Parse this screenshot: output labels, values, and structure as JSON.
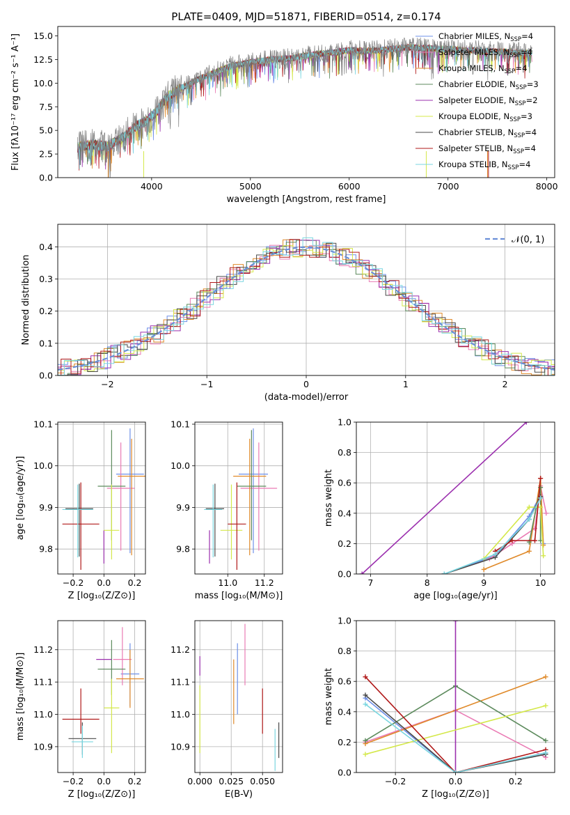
{
  "figure": {
    "title": "PLATE=0409, MJD=51871, FIBERID=0514, z=0.174"
  },
  "models": [
    {
      "name": "Chabrier MILES",
      "nssp": "4",
      "color": "#6d8fe8"
    },
    {
      "name": "Salpeter MILES",
      "nssp": "4",
      "color": "#ea7bb4"
    },
    {
      "name": "Kroupa MILES",
      "nssp": "4",
      "color": "#e08a2a"
    },
    {
      "name": "Chabrier ELODIE",
      "nssp": "3",
      "color": "#5c8a5c"
    },
    {
      "name": "Salpeter ELODIE",
      "nssp": "2",
      "color": "#9b2fae"
    },
    {
      "name": "Kroupa ELODIE",
      "nssp": "3",
      "color": "#d4e84a"
    },
    {
      "name": "Chabrier STELIB",
      "nssp": "4",
      "color": "#4a4a4a"
    },
    {
      "name": "Salpeter STELIB",
      "nssp": "4",
      "color": "#b01818"
    },
    {
      "name": "Kroupa STELIB",
      "nssp": "4",
      "color": "#79d6e0"
    }
  ],
  "chart_data": [
    {
      "id": "spectrum",
      "type": "line",
      "xlabel": "wavelength [Angstrom, rest frame]",
      "ylabel": "Flux [fλ10⁻¹⁷ erg cm⁻² s⁻¹ A⁻¹]",
      "xlim": [
        3050,
        8080
      ],
      "ylim": [
        0,
        16
      ],
      "xticks": [
        4000,
        5000,
        6000,
        7000,
        8000
      ],
      "yticks": [
        0.0,
        2.5,
        5.0,
        7.5,
        10.0,
        12.5,
        15.0
      ],
      "data_color": "#808080",
      "x": [
        3250,
        3400,
        3550,
        3700,
        3850,
        3950,
        4050,
        4150,
        4300,
        4450,
        4600,
        4800,
        5000,
        5200,
        5400,
        5600,
        5800,
        6000,
        6200,
        6400,
        6600,
        6800,
        7000,
        7200,
        7400,
        7600,
        7800
      ],
      "y": [
        3.2,
        3.5,
        3.3,
        4.2,
        5.5,
        6.0,
        7.0,
        8.5,
        9.5,
        10.3,
        11.0,
        11.8,
        12.2,
        12.5,
        12.6,
        13.0,
        13.2,
        13.5,
        13.4,
        13.6,
        13.8,
        13.7,
        13.6,
        13.5,
        13.4,
        13.3,
        13.2
      ],
      "grid": false,
      "legend": "top-right"
    },
    {
      "id": "residuals",
      "type": "histogram",
      "xlabel": "(data-model)/error",
      "ylabel": "Normed distribution",
      "xlim": [
        -2.5,
        2.5
      ],
      "ylim": [
        0,
        0.47
      ],
      "xticks": [
        -2,
        -1,
        0,
        1,
        2
      ],
      "yticks": [
        0.0,
        0.1,
        0.2,
        0.3,
        0.4
      ],
      "bin_width": 0.1,
      "gaussian_label": "𝒩(0, 1)",
      "gaussian_color": "#6a8fd8",
      "grid": true,
      "legend": "top-right"
    },
    {
      "id": "age-vs-z",
      "type": "scatter",
      "xlabel": "Z [log₁₀(Z/Z⊙)]",
      "ylabel": "age  [log₁₀(age/yr)]",
      "xlim": [
        -0.3,
        0.27
      ],
      "ylim": [
        9.74,
        10.105
      ],
      "xticks": [
        -0.2,
        0.0,
        0.2
      ],
      "xticklabels": [
        "−0.2",
        "0.0",
        "0.2"
      ],
      "yticks": [
        9.8,
        9.9,
        10.0,
        10.1
      ],
      "yticklabels": [
        "9.8",
        "9.9",
        "10.0",
        "10.1"
      ],
      "points": [
        {
          "x": 0.17,
          "xerr": 0.09,
          "y": 9.98,
          "yerr_lo": 0.19,
          "yerr_hi": 0.11
        },
        {
          "x": 0.11,
          "xerr": 0.09,
          "y": 9.946,
          "yerr_lo": 0.15,
          "yerr_hi": 0.11
        },
        {
          "x": 0.18,
          "xerr": 0.09,
          "y": 9.975,
          "yerr_lo": 0.19,
          "yerr_hi": 0.09
        },
        {
          "x": 0.05,
          "xerr": 0.09,
          "y": 9.951,
          "yerr_lo": 0.13,
          "yerr_hi": 0.135
        },
        {
          "x": 0.0,
          "xerr": 0.0,
          "y": 9.845,
          "yerr_lo": 0.08,
          "yerr_hi": 0.0
        },
        {
          "x": 0.05,
          "xerr": 0.05,
          "y": 9.845,
          "yerr_lo": 0.07,
          "yerr_hi": 0.11
        },
        {
          "x": -0.16,
          "xerr": 0.09,
          "y": 9.897,
          "yerr_lo": 0.115,
          "yerr_hi": 0.06
        },
        {
          "x": -0.15,
          "xerr": 0.12,
          "y": 9.86,
          "yerr_lo": 0.11,
          "yerr_hi": 0.1
        },
        {
          "x": -0.17,
          "xerr": 0.1,
          "y": 9.895,
          "yerr_lo": 0.115,
          "yerr_hi": 0.06
        }
      ]
    },
    {
      "id": "age-vs-mass",
      "type": "scatter",
      "xlabel": "mass [log₁₀(M/M⊙)]",
      "ylabel": "",
      "xlim": [
        10.82,
        11.3
      ],
      "ylim": [
        9.74,
        10.105
      ],
      "xticks": [
        11.0,
        11.2
      ],
      "xticklabels": [
        "11.0",
        "11.2"
      ],
      "yticks": [
        9.8,
        9.9,
        10.0,
        10.1
      ],
      "yticklabels": [
        "9.8",
        "9.9",
        "10.0",
        "10.1"
      ],
      "points": [
        {
          "x": 11.14,
          "xerr": 0.08,
          "y": 9.98,
          "yerr_lo": 0.19,
          "yerr_hi": 0.11
        },
        {
          "x": 11.17,
          "xerr": 0.1,
          "y": 9.946,
          "yerr_lo": 0.15,
          "yerr_hi": 0.11
        },
        {
          "x": 11.12,
          "xerr": 0.09,
          "y": 9.975,
          "yerr_lo": 0.19,
          "yerr_hi": 0.09
        },
        {
          "x": 11.13,
          "xerr": 0.08,
          "y": 9.951,
          "yerr_lo": 0.13,
          "yerr_hi": 0.135
        },
        {
          "x": 10.9,
          "xerr": 0.0,
          "y": 9.845,
          "yerr_lo": 0.08,
          "yerr_hi": 0.0
        },
        {
          "x": 11.02,
          "xerr": 0.06,
          "y": 9.845,
          "yerr_lo": 0.07,
          "yerr_hi": 0.11
        },
        {
          "x": 10.93,
          "xerr": 0.05,
          "y": 9.897,
          "yerr_lo": 0.115,
          "yerr_hi": 0.06
        },
        {
          "x": 11.05,
          "xerr": 0.05,
          "y": 9.86,
          "yerr_lo": 0.11,
          "yerr_hi": 0.1
        },
        {
          "x": 10.92,
          "xerr": 0.05,
          "y": 9.895,
          "yerr_lo": 0.115,
          "yerr_hi": 0.06
        }
      ]
    },
    {
      "id": "weight-vs-age",
      "type": "line",
      "xlabel": "age  [log₁₀(age/yr)]",
      "ylabel": "mass weight",
      "xlim": [
        6.75,
        10.25
      ],
      "ylim": [
        0,
        1
      ],
      "xticks": [
        7,
        8,
        9,
        10
      ],
      "xticklabels": [
        "7",
        "8",
        "9",
        "10"
      ],
      "yticks": [
        0.0,
        0.2,
        0.4,
        0.6,
        0.8,
        1.0
      ],
      "series": [
        {
          "x": [
            8.3,
            9.2,
            9.8,
            10.0,
            10.05
          ],
          "y": [
            0.0,
            0.12,
            0.38,
            0.52,
            0.2
          ]
        },
        {
          "x": [
            9.1,
            9.5,
            9.9,
            10.0,
            10.1
          ],
          "y": [
            0.1,
            0.2,
            0.3,
            0.58,
            0.4
          ]
        },
        {
          "x": [
            9.0,
            9.8,
            10.0,
            10.05
          ],
          "y": [
            0.03,
            0.15,
            0.63,
            0.19
          ]
        },
        {
          "x": [
            9.8,
            10.0,
            10.0
          ],
          "y": [
            0.21,
            0.57,
            0.22
          ]
        },
        {
          "x": [
            6.85,
            9.75
          ],
          "y": [
            0.0,
            1.0
          ]
        },
        {
          "x": [
            9.0,
            9.8,
            10.0,
            10.05
          ],
          "y": [
            0.1,
            0.44,
            0.44,
            0.12
          ]
        },
        {
          "x": [
            8.3,
            9.2,
            9.8,
            10.0
          ],
          "y": [
            0.0,
            0.11,
            0.36,
            0.51
          ]
        },
        {
          "x": [
            9.2,
            9.5,
            9.9,
            10.0
          ],
          "y": [
            0.15,
            0.22,
            0.22,
            0.63
          ]
        },
        {
          "x": [
            8.3,
            9.2,
            9.8,
            10.0
          ],
          "y": [
            0.0,
            0.13,
            0.36,
            0.5
          ]
        }
      ]
    },
    {
      "id": "mass-vs-z",
      "type": "scatter",
      "xlabel": "Z [log₁₀(Z/Z⊙)]",
      "ylabel": "mass [log₁₀(M/M⊙)]",
      "xlim": [
        -0.3,
        0.27
      ],
      "ylim": [
        10.82,
        11.29
      ],
      "xticks": [
        -0.2,
        0.0,
        0.2
      ],
      "xticklabels": [
        "−0.2",
        "0.0",
        "0.2"
      ],
      "yticks": [
        10.9,
        11.0,
        11.1,
        11.2
      ],
      "yticklabels": [
        "10.9",
        "11.0",
        "11.1",
        "11.2"
      ],
      "points": [
        {
          "x": 0.17,
          "xerr": 0.06,
          "y": 11.125,
          "yerr_lo": 0.1,
          "yerr_hi": 0.095
        },
        {
          "x": 0.12,
          "xerr": 0.06,
          "y": 11.17,
          "yerr_lo": 0.08,
          "yerr_hi": 0.1
        },
        {
          "x": 0.17,
          "xerr": 0.09,
          "y": 11.11,
          "yerr_lo": 0.09,
          "yerr_hi": 0.09
        },
        {
          "x": 0.05,
          "xerr": 0.09,
          "y": 11.14,
          "yerr_lo": 0.08,
          "yerr_hi": 0.09
        },
        {
          "x": 0.0,
          "xerr": 0.05,
          "y": 11.17,
          "yerr_lo": 0.0,
          "yerr_hi": 0.0
        },
        {
          "x": 0.05,
          "xerr": 0.05,
          "y": 11.02,
          "yerr_lo": 0.14,
          "yerr_hi": 0.09
        },
        {
          "x": -0.14,
          "xerr": 0.09,
          "y": 10.925,
          "yerr_lo": 0.05,
          "yerr_hi": 0.05
        },
        {
          "x": -0.15,
          "xerr": 0.12,
          "y": 10.985,
          "yerr_lo": 0.045,
          "yerr_hi": 0.095
        },
        {
          "x": -0.14,
          "xerr": 0.07,
          "y": 10.915,
          "yerr_lo": 0.05,
          "yerr_hi": 0.05
        }
      ]
    },
    {
      "id": "mass-vs-ebv",
      "type": "scatter",
      "xlabel": "E(B-V)",
      "ylabel": "",
      "xlim": [
        -0.004,
        0.066
      ],
      "ylim": [
        10.82,
        11.29
      ],
      "xticks": [
        0.0,
        0.025,
        0.05
      ],
      "xticklabels": [
        "0.000",
        "0.025",
        "0.050"
      ],
      "yticks": [
        10.9,
        11.0,
        11.1,
        11.2
      ],
      "yticklabels": [
        "10.9",
        "11.0",
        "11.1",
        "11.2"
      ],
      "points": [
        {
          "x": 0.03,
          "y": 11.11,
          "yerr_lo": 0.11,
          "yerr_hi": 0.11
        },
        {
          "x": 0.036,
          "y": 11.2,
          "yerr_lo": 0.11,
          "yerr_hi": 0.08
        },
        {
          "x": 0.027,
          "y": 11.07,
          "yerr_lo": 0.1,
          "yerr_hi": 0.1
        },
        {
          "x": 0.0,
          "y": 11.14,
          "yerr_lo": 0.0,
          "yerr_hi": 0.0
        },
        {
          "x": 0.0,
          "y": 11.12,
          "yerr_lo": 0.0,
          "yerr_hi": 0.06
        },
        {
          "x": 0.0,
          "y": 10.99,
          "yerr_lo": 0.11,
          "yerr_hi": 0.1
        },
        {
          "x": 0.063,
          "y": 10.935,
          "yerr_lo": 0.07,
          "yerr_hi": 0.04
        },
        {
          "x": 0.05,
          "y": 11.01,
          "yerr_lo": 0.07,
          "yerr_hi": 0.07
        },
        {
          "x": 0.06,
          "y": 10.915,
          "yerr_lo": 0.09,
          "yerr_hi": 0.04
        }
      ]
    },
    {
      "id": "weight-vs-z",
      "type": "line",
      "xlabel": "Z [log₁₀(Z/Z⊙)]",
      "ylabel": "mass weight",
      "xlim": [
        -0.33,
        0.33
      ],
      "ylim": [
        0,
        1
      ],
      "xticks": [
        -0.2,
        0.0,
        0.2
      ],
      "xticklabels": [
        "−0.2",
        "0.0",
        "0.2"
      ],
      "yticks": [
        0.0,
        0.2,
        0.4,
        0.6,
        0.8,
        1.0
      ],
      "series": [
        {
          "x": [
            -0.3,
            0.0,
            0.3
          ],
          "y": [
            0.49,
            0.0,
            0.13
          ]
        },
        {
          "x": [
            -0.3,
            0.0,
            0.3
          ],
          "y": [
            0.2,
            0.41,
            0.1
          ]
        },
        {
          "x": [
            -0.3,
            0.3
          ],
          "y": [
            0.19,
            0.63
          ]
        },
        {
          "x": [
            -0.3,
            0.0,
            0.3
          ],
          "y": [
            0.21,
            0.57,
            0.21
          ]
        },
        {
          "x": [
            0.0,
            0.0
          ],
          "y": [
            0.0,
            1.0
          ]
        },
        {
          "x": [
            -0.3,
            0.3
          ],
          "y": [
            0.12,
            0.44
          ]
        },
        {
          "x": [
            -0.3,
            0.0,
            0.3
          ],
          "y": [
            0.51,
            0.0,
            0.12
          ]
        },
        {
          "x": [
            -0.3,
            0.0,
            0.3
          ],
          "y": [
            0.63,
            0.0,
            0.15
          ]
        },
        {
          "x": [
            -0.3,
            0.0,
            0.3
          ],
          "y": [
            0.45,
            0.0,
            0.13
          ]
        }
      ]
    }
  ]
}
